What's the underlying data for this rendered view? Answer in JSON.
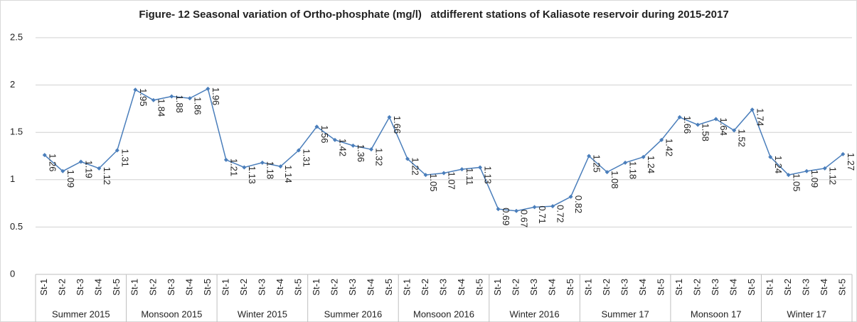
{
  "chart_data": {
    "type": "line",
    "title": "Figure- 12 Seasonal variation of Ortho-phosphate (mg/l)   atdifferent stations of Kaliasote reservoir during 2015-2017",
    "groups": [
      "Summer 2015",
      "Monsoon 2015",
      "Winter 2015",
      "Summer 2016",
      "Monsoon 2016",
      "Winter 2016",
      "Summer 17",
      "Monsoon 17",
      "Winter 17"
    ],
    "categories": [
      "St-1",
      "St-2",
      "St-3",
      "St-4",
      "St-5",
      "St-1",
      "St-2",
      "St-3",
      "St-4",
      "St-5",
      "St-1",
      "St-2",
      "St-3",
      "St-4",
      "St-5",
      "St-1",
      "St-2",
      "St-3",
      "St-4",
      "St-5",
      "St-1",
      "St-2",
      "St-3",
      "St-4",
      "St-5",
      "St-1",
      "St-2",
      "St-3",
      "St-4",
      "St-5",
      "St-1",
      "St-2",
      "St-3",
      "St-4",
      "St-5",
      "St-1",
      "St-2",
      "St-3",
      "St-4",
      "St-5",
      "St-1",
      "St-2",
      "St-3",
      "St-4",
      "St-5"
    ],
    "values": [
      1.26,
      1.09,
      1.19,
      1.12,
      1.31,
      1.95,
      1.84,
      1.88,
      1.86,
      1.96,
      1.21,
      1.13,
      1.18,
      1.14,
      1.31,
      1.56,
      1.42,
      1.36,
      1.32,
      1.66,
      1.22,
      1.05,
      1.07,
      1.11,
      1.13,
      0.69,
      0.67,
      0.71,
      0.72,
      0.82,
      1.25,
      1.08,
      1.18,
      1.24,
      1.42,
      1.66,
      1.58,
      1.64,
      1.52,
      1.74,
      1.24,
      1.05,
      1.09,
      1.12,
      1.27
    ],
    "color": "#4a7ebb",
    "ylim": [
      0,
      2.5
    ],
    "yticks": [
      0,
      0.5,
      1,
      1.5,
      2,
      2.5
    ],
    "grid": true
  }
}
